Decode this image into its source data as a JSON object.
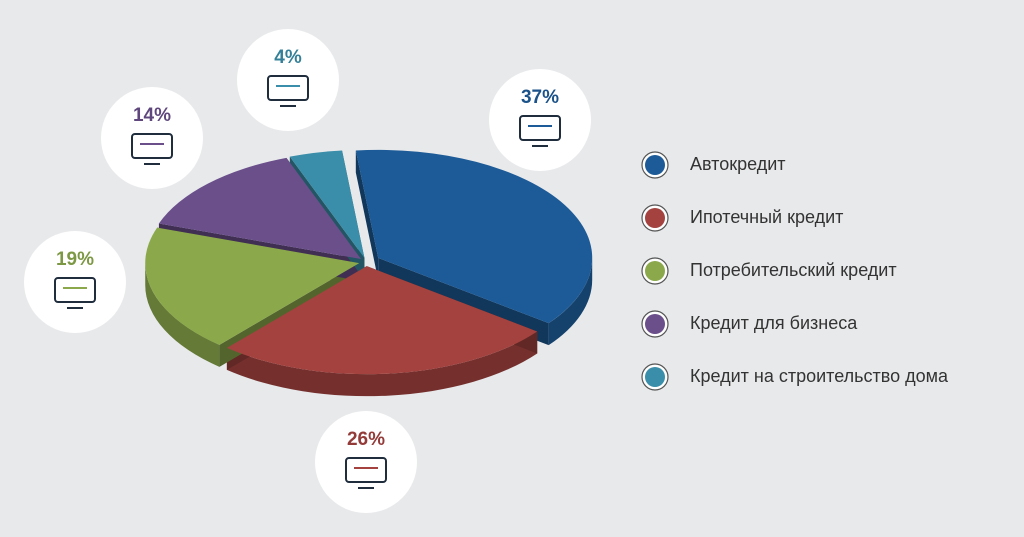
{
  "chart_data": {
    "type": "pie",
    "categories": [
      "Автокредит",
      "Ипотечный кредит",
      "Потребительский кредит",
      "Кредит для бизнеса",
      "Кредит на строительство дома"
    ],
    "values": [
      37,
      26,
      19,
      14,
      4
    ],
    "value_labels": [
      "37%",
      "26%",
      "19%",
      "14%",
      "4%"
    ],
    "colors": [
      "#1d5b98",
      "#a3423f",
      "#8ba94b",
      "#6a4f8b",
      "#3a8ea9"
    ],
    "legend": "right"
  }
}
